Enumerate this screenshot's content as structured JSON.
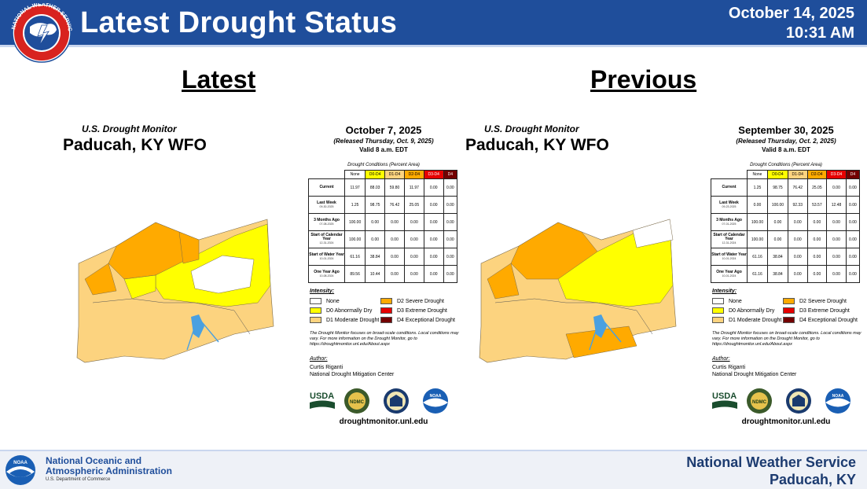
{
  "header": {
    "title": "Latest Drought Status",
    "date": "October 14, 2025",
    "time": "10:31 AM",
    "logo_text": "NATIONAL WEATHER SERVICE"
  },
  "sections": {
    "left_heading": "Latest",
    "right_heading": "Previous"
  },
  "columns": [
    "None",
    "D0-D4",
    "D1-D4",
    "D2-D4",
    "D3-D4",
    "D4"
  ],
  "legend_items": [
    "None",
    "D0 Abnormally Dry",
    "D1 Moderate Drought",
    "D2 Severe Drought",
    "D3 Extreme Drought",
    "D4 Exceptional Drought"
  ],
  "legend_colors": [
    "#ffffff",
    "#ffff00",
    "#fcd37f",
    "#ffaa00",
    "#e60000",
    "#730000"
  ],
  "latest": {
    "usdm_title": "U.S. Drought Monitor",
    "wfo": "Paducah, KY WFO",
    "map_date": "October 7, 2025",
    "released": "(Released Thursday, Oct. 9, 2025)",
    "valid": "Valid 8 a.m. EDT",
    "conditions_label": "Drought Conditions (Percent Area)",
    "rows": [
      {
        "label": "Current",
        "sub": "",
        "values": [
          "11.97",
          "88.03",
          "59.80",
          "11.97",
          "0.00",
          "0.00"
        ]
      },
      {
        "label": "Last Week",
        "sub": "09-30-2025",
        "values": [
          "1.25",
          "98.75",
          "76.42",
          "25.05",
          "0.00",
          "0.00"
        ]
      },
      {
        "label": "3 Months Ago",
        "sub": "07-08-2025",
        "values": [
          "100.00",
          "0.00",
          "0.00",
          "0.00",
          "0.00",
          "0.00"
        ]
      },
      {
        "label": "Start of Calendar Year",
        "sub": "12-31-2024",
        "values": [
          "100.00",
          "0.00",
          "0.00",
          "0.00",
          "0.00",
          "0.00"
        ]
      },
      {
        "label": "Start of Water Year",
        "sub": "10-01-2024",
        "values": [
          "61.16",
          "38.84",
          "0.00",
          "0.00",
          "0.00",
          "0.00"
        ]
      },
      {
        "label": "One Year Ago",
        "sub": "10-08-2024",
        "values": [
          "89.56",
          "10.44",
          "0.00",
          "0.00",
          "0.00",
          "0.00"
        ]
      }
    ],
    "intensity": "Intensity:",
    "note": "The Drought Monitor focuses on broad-scale conditions. Local conditions may vary. For more information on the Drought Monitor, go to https://droughtmonitor.unl.edu/About.aspx",
    "author_label": "Author:",
    "author_name": "Curtis Riganti",
    "author_org": "National Drought Mitigation Center",
    "url": "droughtmonitor.unl.edu",
    "logo_usda": "USDA",
    "logo_ndmc": "NDMC",
    "logo_noaa": "NOAA"
  },
  "previous": {
    "usdm_title": "U.S. Drought Monitor",
    "wfo": "Paducah, KY WFO",
    "map_date": "September 30, 2025",
    "released": "(Released Thursday, Oct. 2, 2025)",
    "valid": "Valid 8 a.m. EDT",
    "conditions_label": "Drought Conditions (Percent Area)",
    "rows": [
      {
        "label": "Current",
        "sub": "",
        "values": [
          "1.25",
          "98.75",
          "76.42",
          "25.05",
          "0.00",
          "0.00"
        ]
      },
      {
        "label": "Last Week",
        "sub": "09-23-2025",
        "values": [
          "0.00",
          "100.00",
          "92.33",
          "53.57",
          "12.48",
          "0.00"
        ]
      },
      {
        "label": "3 Months Ago",
        "sub": "07-01-2025",
        "values": [
          "100.00",
          "0.00",
          "0.00",
          "0.00",
          "0.00",
          "0.00"
        ]
      },
      {
        "label": "Start of Calendar Year",
        "sub": "12-31-2024",
        "values": [
          "100.00",
          "0.00",
          "0.00",
          "0.00",
          "0.00",
          "0.00"
        ]
      },
      {
        "label": "Start of Water Year",
        "sub": "10-01-2024",
        "values": [
          "61.16",
          "38.84",
          "0.00",
          "0.00",
          "0.00",
          "0.00"
        ]
      },
      {
        "label": "One Year Ago",
        "sub": "10-01-2024",
        "values": [
          "61.16",
          "38.84",
          "0.00",
          "0.00",
          "0.00",
          "0.00"
        ]
      }
    ],
    "intensity": "Intensity:",
    "note": "The Drought Monitor focuses on broad-scale conditions. Local conditions may vary. For more information on the Drought Monitor, go to https://droughtmonitor.unl.edu/About.aspx",
    "author_label": "Author:",
    "author_name": "Curtis Riganti",
    "author_org": "National Drought Mitigation Center",
    "url": "droughtmonitor.unl.edu",
    "logo_usda": "USDA",
    "logo_ndmc": "NDMC",
    "logo_noaa": "NOAA"
  },
  "footer": {
    "noaa_line1": "National Oceanic and",
    "noaa_line2": "Atmospheric Administration",
    "noaa_sub": "U.S. Department of Commerce",
    "noaa_logo_text": "NOAA",
    "nws_line1": "National Weather Service",
    "nws_line2": "Paducah, KY"
  }
}
